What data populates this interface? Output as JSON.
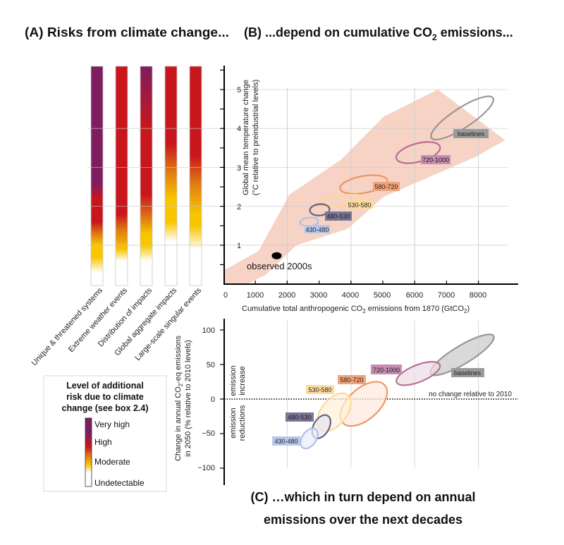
{
  "titles": {
    "a": "(A) Risks from climate change...",
    "b_pre": "(B) ...depend on cumulative CO",
    "b_sub": "2",
    "b_post": " emissions...",
    "c_line1": "(C) …which in turn depend on annual",
    "c_line2": "emissions over the next decades"
  },
  "colors": {
    "very_high": "#7e1d5f",
    "high": "#c8161d",
    "moderate": "#f7c600",
    "undetectable": "#ffffff",
    "plume": "#f7d3c6"
  },
  "legend": {
    "title": [
      "Level of additional",
      "risk due to climate",
      "change (see box 2.4)"
    ],
    "levels": [
      "Very high",
      "High",
      "Moderate",
      "Undetectable"
    ]
  },
  "chart_data": [
    {
      "type": "heatmap",
      "panel": "A",
      "title": "(A) Risks from climate change...",
      "ylabel_shared_with": "B",
      "categories": [
        "Unique & threatened systems",
        "Extreme weather events",
        "Distribution of impacts",
        "Global aggregate impacts",
        "Large-scale singular events"
      ],
      "series": [
        {
          "stops": [
            [
              0.3,
              "undetectable"
            ],
            [
              0.7,
              "moderate"
            ],
            [
              1.0,
              "moderate"
            ],
            [
              1.3,
              "orange"
            ],
            [
              1.6,
              "high"
            ],
            [
              2.2,
              "high"
            ],
            [
              2.6,
              "very_high"
            ],
            [
              5.6,
              "very_high"
            ]
          ]
        },
        {
          "stops": [
            [
              0.6,
              "undetectable"
            ],
            [
              0.9,
              "moderate"
            ],
            [
              1.4,
              "orange"
            ],
            [
              1.8,
              "high"
            ],
            [
              5.6,
              "high"
            ]
          ]
        },
        {
          "stops": [
            [
              0.6,
              "undetectable"
            ],
            [
              1.0,
              "moderate"
            ],
            [
              1.3,
              "moderate"
            ],
            [
              1.7,
              "orange"
            ],
            [
              2.3,
              "high"
            ],
            [
              4.0,
              "high"
            ],
            [
              5.6,
              "very_high"
            ]
          ]
        },
        {
          "stops": [
            [
              1.1,
              "undetectable"
            ],
            [
              1.6,
              "moderate"
            ],
            [
              2.2,
              "moderate"
            ],
            [
              2.9,
              "orange"
            ],
            [
              3.6,
              "high"
            ],
            [
              5.6,
              "high"
            ]
          ]
        },
        {
          "stops": [
            [
              0.9,
              "undetectable"
            ],
            [
              1.5,
              "moderate"
            ],
            [
              1.8,
              "moderate"
            ],
            [
              2.6,
              "orange"
            ],
            [
              3.3,
              "high"
            ],
            [
              5.6,
              "high"
            ]
          ]
        }
      ]
    },
    {
      "type": "scatter",
      "panel": "B",
      "xlabel": [
        "Cumulative total anthropogenic CO",
        "2",
        " emissions from 1870 (GtCO",
        "2",
        ")"
      ],
      "ylabel": [
        "Global mean temperature change",
        "(°C relative to preindustrial levels)"
      ],
      "xlim": [
        0,
        9000
      ],
      "ylim": [
        0,
        5.6
      ],
      "xticks": [
        "0",
        "1000",
        "2000",
        "3000",
        "4000",
        "5000",
        "6000",
        "7000",
        "8000"
      ],
      "yticks": [
        "1",
        "2",
        "3",
        "4",
        "5"
      ],
      "grid": true,
      "observed": {
        "label": "observed 2000s",
        "x": 1670,
        "y": 0.73
      },
      "plume": [
        [
          0,
          0.35
        ],
        [
          1100,
          0.85
        ],
        [
          2070,
          2.3
        ],
        [
          3690,
          3.2
        ],
        [
          5020,
          4.3
        ],
        [
          6730,
          5.0
        ],
        [
          8840,
          3.7
        ],
        [
          7910,
          3.27
        ],
        [
          5020,
          2.24
        ],
        [
          3900,
          1.42
        ],
        [
          2290,
          1.0
        ],
        [
          1330,
          0.24
        ],
        [
          0,
          -0.3
        ]
      ],
      "series": [
        {
          "name": "baselines",
          "x": 7490,
          "y": 4.27,
          "color": "#8e8e8e"
        },
        {
          "name": "720-1000",
          "x": 6110,
          "y": 3.38,
          "color": "#b0608f"
        },
        {
          "name": "580-720",
          "x": 4400,
          "y": 2.56,
          "color": "#eb8c5a"
        },
        {
          "name": "530-580",
          "x": 3690,
          "y": 2.15,
          "color": "#fbd88c"
        },
        {
          "name": "480-530",
          "x": 3020,
          "y": 1.91,
          "color": "#5a5478"
        },
        {
          "name": "430-480",
          "x": 2690,
          "y": 1.6,
          "color": "#a9bde3"
        }
      ]
    },
    {
      "type": "scatter",
      "panel": "C",
      "ylabel": [
        "Change in annual CO",
        "2",
        "-eq emissions",
        "in 2050 (% relative to 2010 levels)"
      ],
      "ylim": [
        -120,
        120
      ],
      "yticks": [
        "100",
        "50",
        "0",
        "−50",
        "−100"
      ],
      "grid": true,
      "reference_line": "no change relative to 2010",
      "annotations": {
        "increase": [
          "emission",
          "increase"
        ],
        "reductions": [
          "emission",
          "reductions"
        ]
      },
      "series": [
        {
          "name": "baselines",
          "x": 7490,
          "y": 64,
          "color": "#8e8e8e"
        },
        {
          "name": "720-1000",
          "x": 6110,
          "y": 37,
          "color": "#b0608f"
        },
        {
          "name": "580-720",
          "x": 4400,
          "y": -7,
          "color": "#eb8c5a"
        },
        {
          "name": "530-580",
          "x": 3470,
          "y": -19,
          "color": "#fbd88c"
        },
        {
          "name": "480-530",
          "x": 3070,
          "y": -40,
          "color": "#5a5478"
        },
        {
          "name": "430-480",
          "x": 2690,
          "y": -57,
          "color": "#a9bde3"
        }
      ]
    }
  ]
}
